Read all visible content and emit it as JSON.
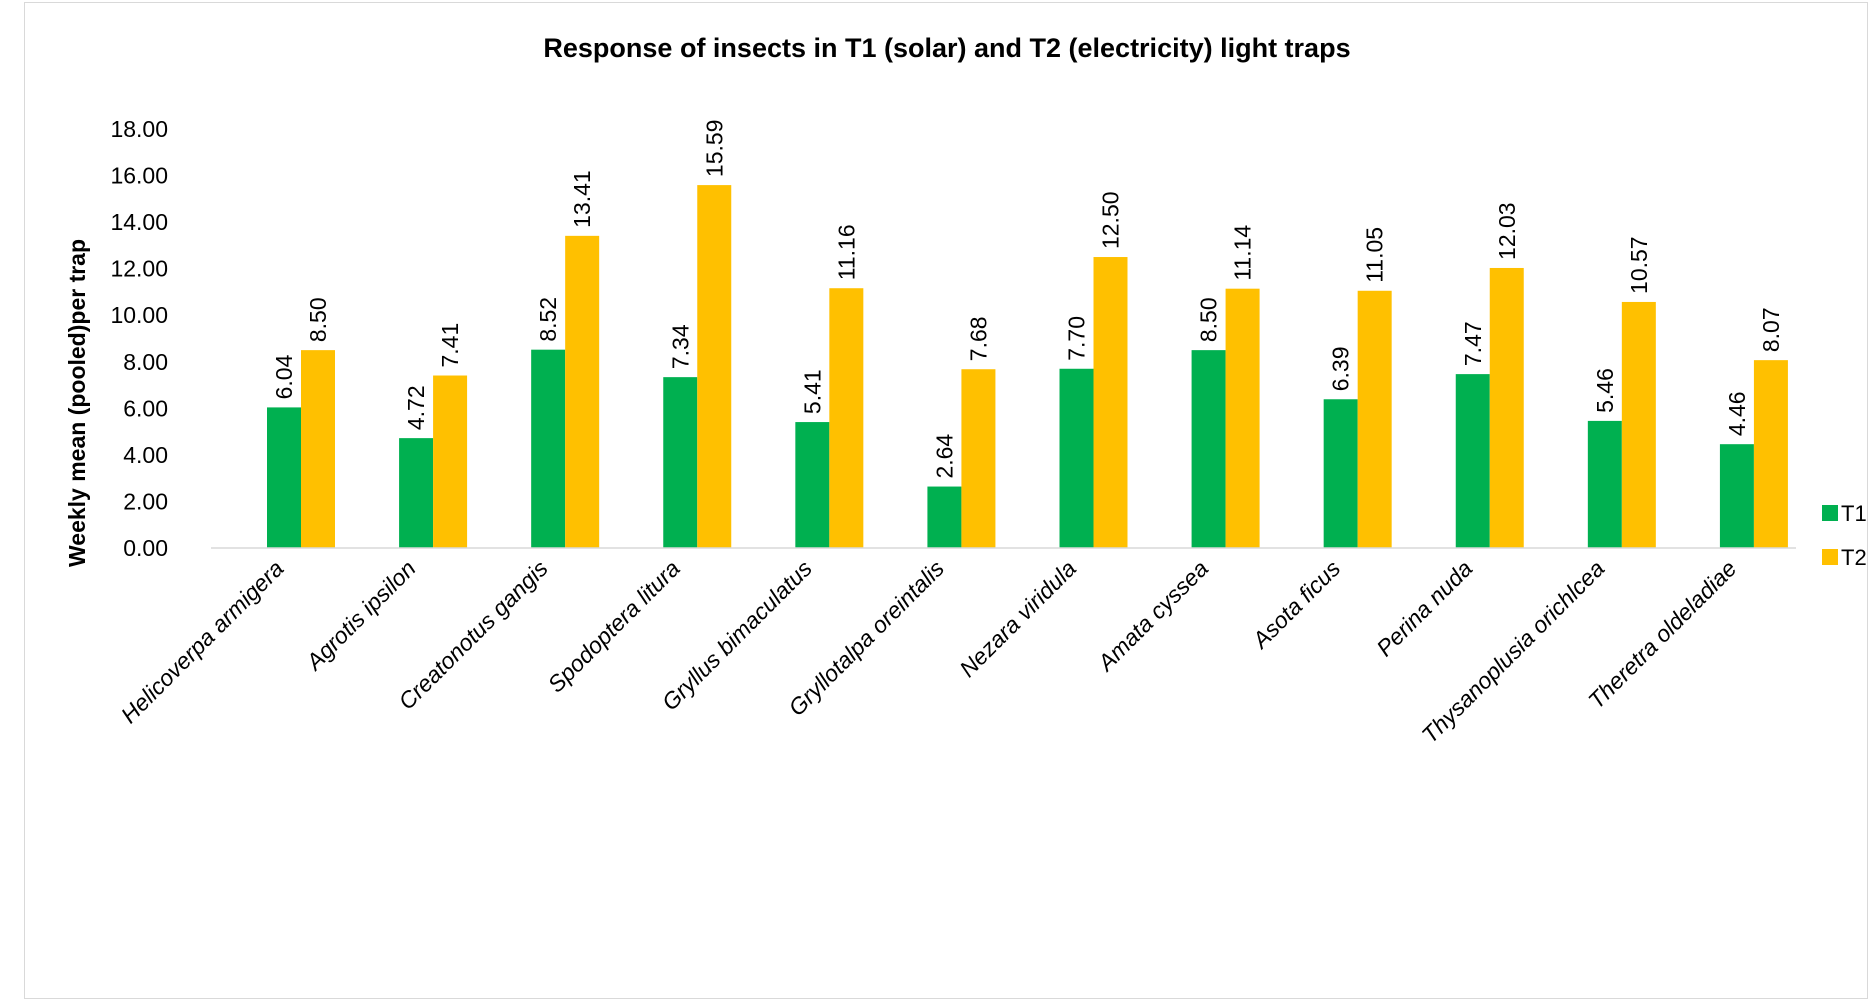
{
  "chart_data": {
    "type": "bar",
    "title": "Response of insects in T1 (solar) and T2 (electricity) light traps",
    "xlabel": "",
    "ylabel": "Weekly mean (pooled)per trap",
    "ylim": [
      0,
      18
    ],
    "yticks": [
      "0.00",
      "2.00",
      "4.00",
      "6.00",
      "8.00",
      "10.00",
      "12.00",
      "14.00",
      "16.00",
      "18.00"
    ],
    "categories": [
      "Helicoverpa armigera",
      "Agrotis ipsilon",
      "Creatonotus gangis",
      "Spodoptera litura",
      "Gryllus bimaculatus",
      "Gryllotalpa oreintalis",
      "Nezara viridula",
      "Amata cyssea",
      "Asota ficus",
      "Perina nuda",
      "Thysanoplusia orichlcea",
      "Theretra oldeladiae"
    ],
    "series": [
      {
        "name": "T1",
        "color": "#00b050",
        "values": [
          6.04,
          4.72,
          8.52,
          7.34,
          5.41,
          2.64,
          7.7,
          8.5,
          6.39,
          7.47,
          5.46,
          4.46
        ],
        "labels": [
          "6.04",
          "4.72",
          "8.52",
          "7.34",
          "5.41",
          "2.64",
          "7.70",
          "8.50",
          "6.39",
          "7.47",
          "5.46",
          "4.46"
        ]
      },
      {
        "name": "T2",
        "color": "#ffc000",
        "values": [
          8.5,
          7.41,
          13.41,
          15.59,
          11.16,
          7.68,
          12.5,
          11.14,
          11.05,
          12.03,
          10.57,
          8.07
        ],
        "labels": [
          "8.50",
          "7.41",
          "13.41",
          "15.59",
          "11.16",
          "7.68",
          "12.50",
          "11.14",
          "11.05",
          "12.03",
          "10.57",
          "8.07"
        ]
      }
    ],
    "grid": false,
    "legend_position": "right",
    "data_labels": true
  }
}
